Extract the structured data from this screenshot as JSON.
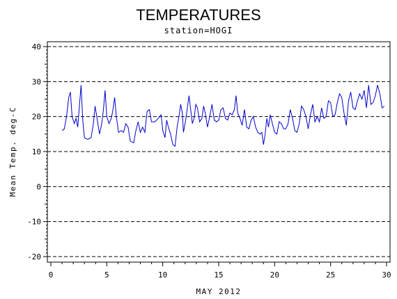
{
  "chart_data": {
    "type": "line",
    "title": "TEMPERATURES",
    "subtitle": "station=HOGI",
    "xlabel": "MAY 2012",
    "ylabel": "Mean Temp. deg-C",
    "xlim": [
      0,
      30
    ],
    "ylim": [
      -20,
      40
    ],
    "x_ticks": [
      0,
      5,
      10,
      15,
      20,
      25,
      30
    ],
    "x_tick_labels": [
      "0",
      "5",
      "10",
      "15",
      "20",
      "25",
      "30"
    ],
    "y_ticks": [
      -20,
      -10,
      0,
      10,
      20,
      30,
      40
    ],
    "y_tick_labels": [
      "-20",
      "-10",
      "0",
      "10",
      "20",
      "30",
      "40"
    ],
    "grid": "horizontal dashed at major y ticks",
    "series": [
      {
        "color": "#0000cc",
        "points": [
          [
            1.0,
            16.0
          ],
          [
            1.2,
            16.5
          ],
          [
            1.4,
            20.0
          ],
          [
            1.6,
            25.5
          ],
          [
            1.75,
            27.0
          ],
          [
            1.9,
            20.0
          ],
          [
            2.1,
            18.0
          ],
          [
            2.25,
            19.5
          ],
          [
            2.4,
            17.0
          ],
          [
            2.55,
            23.0
          ],
          [
            2.7,
            29.0
          ],
          [
            2.85,
            19.0
          ],
          [
            3.0,
            14.0
          ],
          [
            3.3,
            13.5
          ],
          [
            3.6,
            14.0
          ],
          [
            3.8,
            18.0
          ],
          [
            3.95,
            23.0
          ],
          [
            4.15,
            19.0
          ],
          [
            4.35,
            15.0
          ],
          [
            4.55,
            18.0
          ],
          [
            4.7,
            22.0
          ],
          [
            4.85,
            27.5
          ],
          [
            5.0,
            20.0
          ],
          [
            5.2,
            18.0
          ],
          [
            5.4,
            19.5
          ],
          [
            5.55,
            22.0
          ],
          [
            5.7,
            25.5
          ],
          [
            5.85,
            20.0
          ],
          [
            6.05,
            15.5
          ],
          [
            6.3,
            16.0
          ],
          [
            6.5,
            15.5
          ],
          [
            6.7,
            18.0
          ],
          [
            6.9,
            17.0
          ],
          [
            7.1,
            13.0
          ],
          [
            7.4,
            12.5
          ],
          [
            7.6,
            16.0
          ],
          [
            7.8,
            18.5
          ],
          [
            8.0,
            15.5
          ],
          [
            8.2,
            17.0
          ],
          [
            8.4,
            15.5
          ],
          [
            8.6,
            21.5
          ],
          [
            8.8,
            22.0
          ],
          [
            9.0,
            18.5
          ],
          [
            9.3,
            18.5
          ],
          [
            9.6,
            19.5
          ],
          [
            9.85,
            20.5
          ],
          [
            10.0,
            16.0
          ],
          [
            10.2,
            14.0
          ],
          [
            10.35,
            19.0
          ],
          [
            10.5,
            17.0
          ],
          [
            10.7,
            15.0
          ],
          [
            10.9,
            12.0
          ],
          [
            11.1,
            11.5
          ],
          [
            11.3,
            17.5
          ],
          [
            11.45,
            20.0
          ],
          [
            11.6,
            23.5
          ],
          [
            11.75,
            21.0
          ],
          [
            11.85,
            15.5
          ],
          [
            12.05,
            19.0
          ],
          [
            12.2,
            22.5
          ],
          [
            12.35,
            26.0
          ],
          [
            12.5,
            22.0
          ],
          [
            12.65,
            18.0
          ],
          [
            12.8,
            19.5
          ],
          [
            12.95,
            23.5
          ],
          [
            13.1,
            22.5
          ],
          [
            13.3,
            18.5
          ],
          [
            13.5,
            19.5
          ],
          [
            13.65,
            23.0
          ],
          [
            13.8,
            21.0
          ],
          [
            14.0,
            17.0
          ],
          [
            14.2,
            20.0
          ],
          [
            14.4,
            23.5
          ],
          [
            14.6,
            19.0
          ],
          [
            14.8,
            18.5
          ],
          [
            15.0,
            19.0
          ],
          [
            15.2,
            22.0
          ],
          [
            15.4,
            22.5
          ],
          [
            15.6,
            19.5
          ],
          [
            15.8,
            19.0
          ],
          [
            16.0,
            21.0
          ],
          [
            16.2,
            20.5
          ],
          [
            16.4,
            22.0
          ],
          [
            16.55,
            26.0
          ],
          [
            16.7,
            21.0
          ],
          [
            16.9,
            19.5
          ],
          [
            17.1,
            17.5
          ],
          [
            17.3,
            22.0
          ],
          [
            17.5,
            17.0
          ],
          [
            17.7,
            16.5
          ],
          [
            17.9,
            19.0
          ],
          [
            18.1,
            20.0
          ],
          [
            18.3,
            17.0
          ],
          [
            18.5,
            15.5
          ],
          [
            18.7,
            15.0
          ],
          [
            18.85,
            15.5
          ],
          [
            19.0,
            12.0
          ],
          [
            19.15,
            15.0
          ],
          [
            19.3,
            19.5
          ],
          [
            19.45,
            17.0
          ],
          [
            19.6,
            20.5
          ],
          [
            19.8,
            18.0
          ],
          [
            20.0,
            15.5
          ],
          [
            20.2,
            15.0
          ],
          [
            20.4,
            18.5
          ],
          [
            20.6,
            18.0
          ],
          [
            20.8,
            16.5
          ],
          [
            21.0,
            16.5
          ],
          [
            21.2,
            18.0
          ],
          [
            21.4,
            22.0
          ],
          [
            21.6,
            19.5
          ],
          [
            21.8,
            16.0
          ],
          [
            22.0,
            15.5
          ],
          [
            22.2,
            18.0
          ],
          [
            22.4,
            23.0
          ],
          [
            22.6,
            22.0
          ],
          [
            22.8,
            20.0
          ],
          [
            23.0,
            16.5
          ],
          [
            23.2,
            20.5
          ],
          [
            23.4,
            23.5
          ],
          [
            23.6,
            18.5
          ],
          [
            23.8,
            20.0
          ],
          [
            24.0,
            18.5
          ],
          [
            24.2,
            22.5
          ],
          [
            24.4,
            19.5
          ],
          [
            24.6,
            20.0
          ],
          [
            24.8,
            24.5
          ],
          [
            25.0,
            24.0
          ],
          [
            25.2,
            20.0
          ],
          [
            25.4,
            20.5
          ],
          [
            25.6,
            24.0
          ],
          [
            25.8,
            26.5
          ],
          [
            26.0,
            25.5
          ],
          [
            26.2,
            21.0
          ],
          [
            26.4,
            17.5
          ],
          [
            26.6,
            24.5
          ],
          [
            26.8,
            27.0
          ],
          [
            27.0,
            22.5
          ],
          [
            27.2,
            22.0
          ],
          [
            27.4,
            24.5
          ],
          [
            27.6,
            26.5
          ],
          [
            27.8,
            25.0
          ],
          [
            28.0,
            27.5
          ],
          [
            28.2,
            22.5
          ],
          [
            28.4,
            29.0
          ],
          [
            28.6,
            23.5
          ],
          [
            28.8,
            24.0
          ],
          [
            29.0,
            26.0
          ],
          [
            29.2,
            29.0
          ],
          [
            29.4,
            26.5
          ],
          [
            29.6,
            22.5
          ],
          [
            29.8,
            23.0
          ]
        ]
      }
    ]
  }
}
